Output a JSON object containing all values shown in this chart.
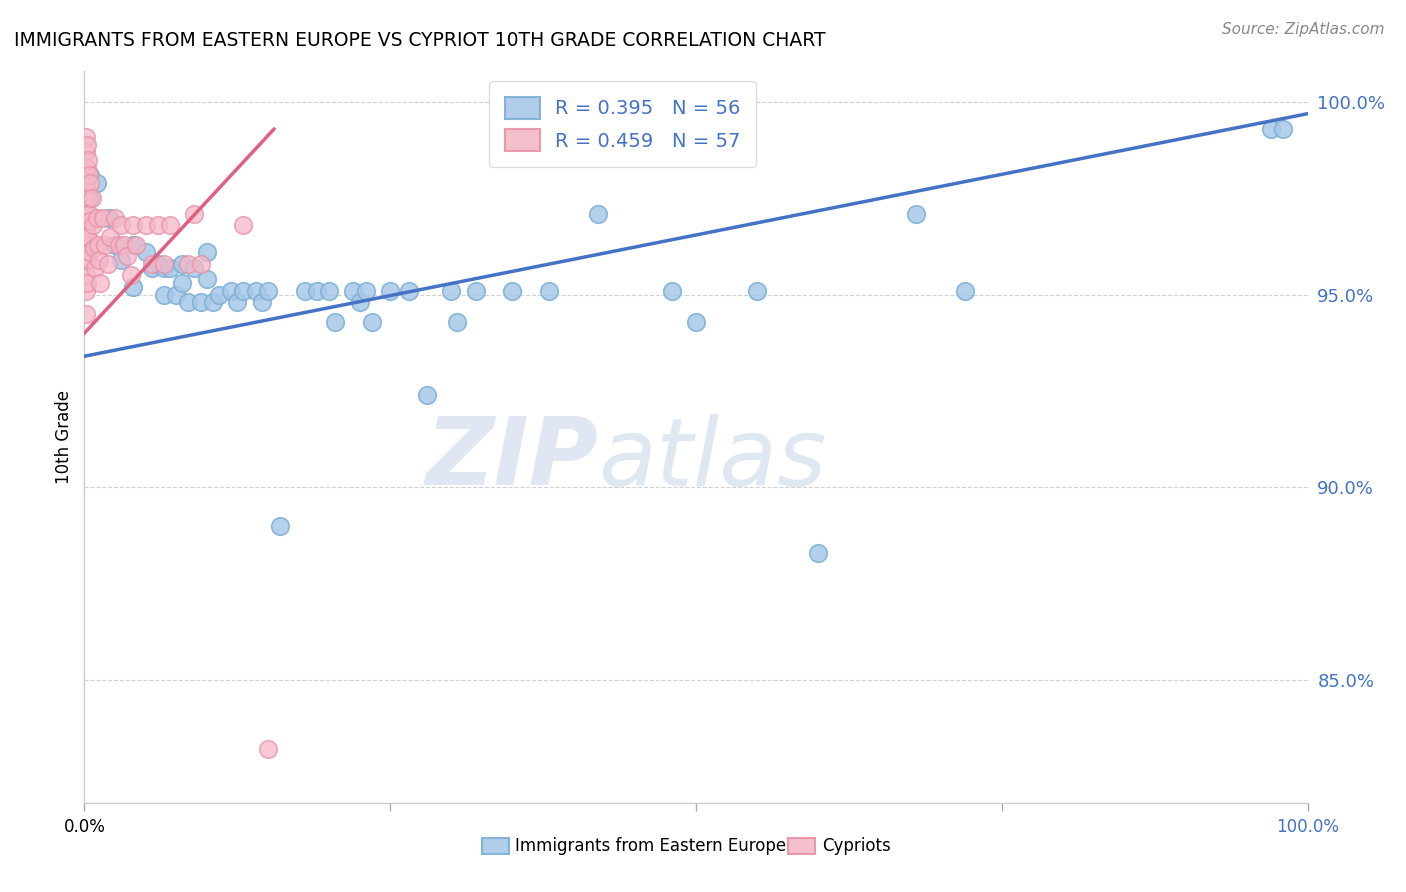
{
  "title": "IMMIGRANTS FROM EASTERN EUROPE VS CYPRIOT 10TH GRADE CORRELATION CHART",
  "source": "Source: ZipAtlas.com",
  "ylabel": "10th Grade",
  "blue_label": "Immigrants from Eastern Europe",
  "pink_label": "Cypriots",
  "blue_R": 0.395,
  "blue_N": 56,
  "pink_R": 0.459,
  "pink_N": 57,
  "blue_color": "#a8c8e8",
  "pink_color": "#f4b8c8",
  "blue_edge_color": "#7aafd4",
  "pink_edge_color": "#e890a8",
  "blue_line_color": "#4472c4",
  "pink_line_color": "#e06080",
  "watermark_zip": "ZIP",
  "watermark_atlas": "atlas",
  "xlim": [
    0.0,
    1.0
  ],
  "ylim": [
    0.818,
    1.008
  ],
  "yticks": [
    0.85,
    0.9,
    0.95,
    1.0
  ],
  "ytick_labels": [
    "85.0%",
    "90.0%",
    "95.0%",
    "100.0%"
  ],
  "blue_scatter_x": [
    0.005,
    0.005,
    0.01,
    0.02,
    0.025,
    0.03,
    0.04,
    0.04,
    0.05,
    0.055,
    0.06,
    0.065,
    0.065,
    0.07,
    0.075,
    0.08,
    0.08,
    0.085,
    0.09,
    0.095,
    0.1,
    0.1,
    0.105,
    0.11,
    0.12,
    0.125,
    0.13,
    0.14,
    0.145,
    0.15,
    0.16,
    0.18,
    0.19,
    0.2,
    0.205,
    0.22,
    0.225,
    0.23,
    0.235,
    0.25,
    0.265,
    0.28,
    0.3,
    0.305,
    0.32,
    0.35,
    0.38,
    0.42,
    0.48,
    0.5,
    0.55,
    0.6,
    0.68,
    0.72,
    0.97,
    0.98
  ],
  "blue_scatter_y": [
    0.981,
    0.975,
    0.979,
    0.97,
    0.963,
    0.959,
    0.963,
    0.952,
    0.961,
    0.957,
    0.958,
    0.957,
    0.95,
    0.957,
    0.95,
    0.958,
    0.953,
    0.948,
    0.957,
    0.948,
    0.961,
    0.954,
    0.948,
    0.95,
    0.951,
    0.948,
    0.951,
    0.951,
    0.948,
    0.951,
    0.89,
    0.951,
    0.951,
    0.951,
    0.943,
    0.951,
    0.948,
    0.951,
    0.943,
    0.951,
    0.951,
    0.924,
    0.951,
    0.943,
    0.951,
    0.951,
    0.951,
    0.971,
    0.951,
    0.943,
    0.951,
    0.883,
    0.971,
    0.951,
    0.993,
    0.993
  ],
  "pink_scatter_x": [
    0.001,
    0.001,
    0.001,
    0.001,
    0.001,
    0.001,
    0.001,
    0.001,
    0.001,
    0.001,
    0.001,
    0.001,
    0.002,
    0.002,
    0.002,
    0.002,
    0.002,
    0.002,
    0.002,
    0.003,
    0.003,
    0.003,
    0.004,
    0.004,
    0.005,
    0.005,
    0.005,
    0.006,
    0.007,
    0.008,
    0.009,
    0.01,
    0.011,
    0.012,
    0.013,
    0.015,
    0.017,
    0.019,
    0.021,
    0.025,
    0.028,
    0.03,
    0.032,
    0.035,
    0.038,
    0.04,
    0.042,
    0.05,
    0.055,
    0.06,
    0.065,
    0.07,
    0.085,
    0.09,
    0.095,
    0.13,
    0.15
  ],
  "pink_scatter_y": [
    0.991,
    0.987,
    0.983,
    0.979,
    0.975,
    0.971,
    0.967,
    0.963,
    0.959,
    0.955,
    0.951,
    0.945,
    0.989,
    0.983,
    0.977,
    0.971,
    0.965,
    0.959,
    0.953,
    0.985,
    0.975,
    0.965,
    0.981,
    0.971,
    0.979,
    0.969,
    0.961,
    0.975,
    0.968,
    0.962,
    0.957,
    0.97,
    0.963,
    0.959,
    0.953,
    0.97,
    0.963,
    0.958,
    0.965,
    0.97,
    0.963,
    0.968,
    0.963,
    0.96,
    0.955,
    0.968,
    0.963,
    0.968,
    0.958,
    0.968,
    0.958,
    0.968,
    0.958,
    0.971,
    0.958,
    0.968,
    0.832
  ],
  "blue_trend_x": [
    0.0,
    1.0
  ],
  "blue_trend_y": [
    0.934,
    0.997
  ],
  "pink_trend_x": [
    0.0,
    0.155
  ],
  "pink_trend_y": [
    0.94,
    0.993
  ]
}
